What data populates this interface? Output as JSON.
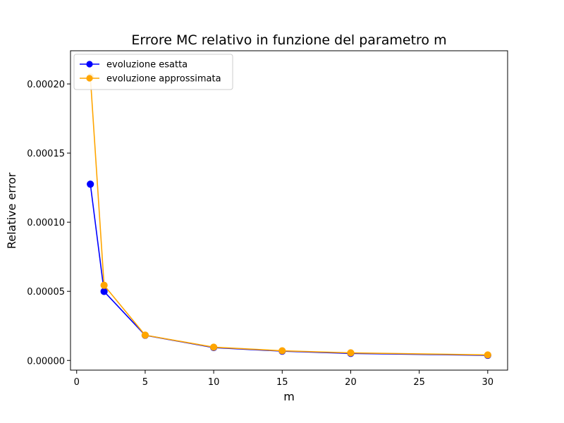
{
  "chart_data": {
    "type": "line",
    "title": "Errore MC relativo in funzione del parametro m",
    "xlabel": "m",
    "ylabel": "Relative error",
    "xlim": [
      -0.45,
      31.45
    ],
    "ylim": [
      -7e-06,
      0.000224
    ],
    "xticks": [
      0,
      5,
      10,
      15,
      20,
      25,
      30
    ],
    "xtick_labels": [
      "0",
      "5",
      "10",
      "15",
      "20",
      "25",
      "30"
    ],
    "yticks": [
      0,
      5e-05,
      0.0001,
      0.00015,
      0.0002
    ],
    "ytick_labels": [
      "0.00000",
      "0.00005",
      "0.00010",
      "0.00015",
      "0.00020"
    ],
    "grid": false,
    "legend_position": "top-left",
    "series": [
      {
        "name": "evoluzione esatta",
        "color": "#0000ff",
        "marker": "circle",
        "x": [
          1,
          2,
          5,
          10,
          15,
          20,
          30
        ],
        "y": [
          0.0001275,
          4.99e-05,
          1.82e-05,
          9.3e-06,
          6.7e-06,
          5.1e-06,
          3.7e-06
        ]
      },
      {
        "name": "evoluzione approssimata",
        "color": "#ffa500",
        "marker": "circle",
        "x": [
          1,
          2,
          5,
          10,
          15,
          20,
          30
        ],
        "y": [
          0.000205,
          5.44e-05,
          1.83e-05,
          9.6e-06,
          7e-06,
          5.5e-06,
          4e-06
        ]
      }
    ]
  }
}
